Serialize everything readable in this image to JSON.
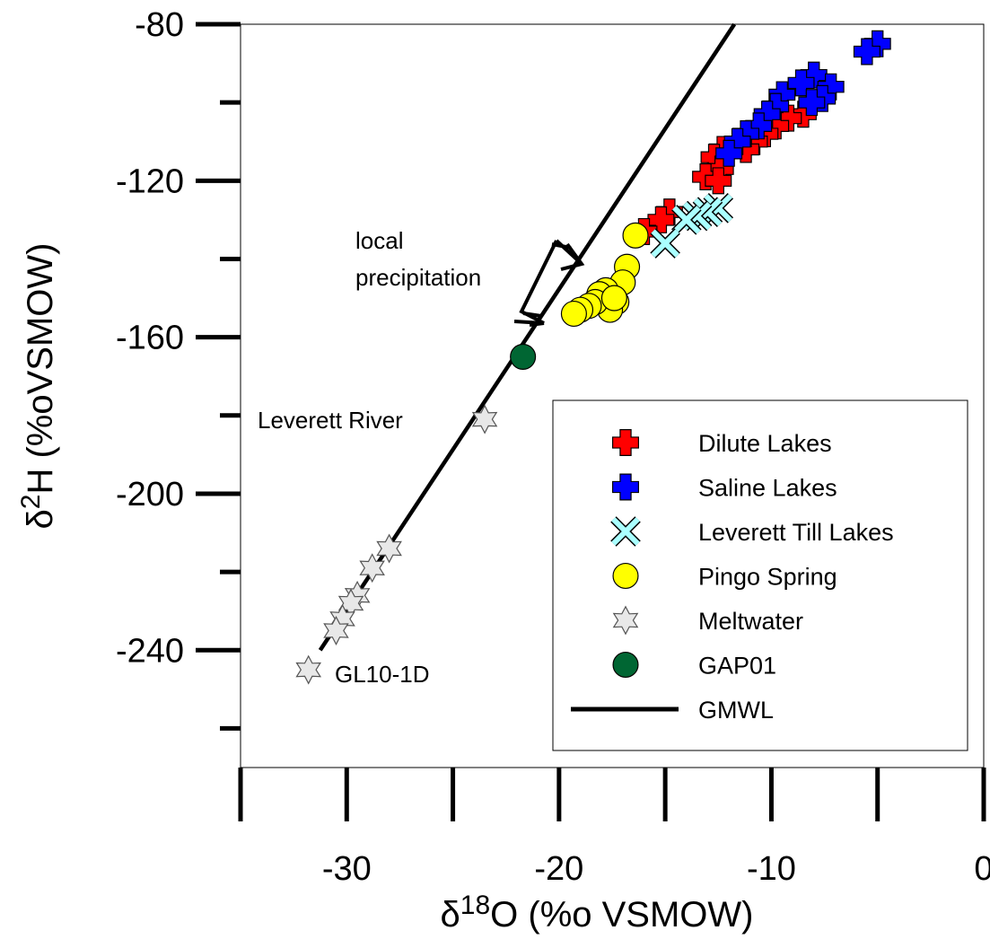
{
  "chart_data": {
    "type": "scatter",
    "title": "",
    "xlabel_prefix": "δ",
    "xlabel_sup": "18",
    "xlabel_main": "O (%o VSMOW)",
    "ylabel_prefix": "δ",
    "ylabel_sup": "2",
    "ylabel_main": "H (%oVSMOW)",
    "xlim": [
      -35,
      0
    ],
    "ylim": [
      -270,
      -80
    ],
    "x_ticks_major": [
      -30,
      -20,
      -10,
      0
    ],
    "x_ticks_minor": [
      -35,
      -25,
      -15,
      -5
    ],
    "y_ticks_major": [
      -80,
      -120,
      -160,
      -200,
      -240
    ],
    "y_ticks_minor": [
      -100,
      -140,
      -180,
      -220,
      -260
    ],
    "grid": false,
    "legend_position": "lower-right",
    "series": [
      {
        "name": "Dilute Lakes",
        "marker": "plus",
        "color": "#ff0000",
        "points": [
          [
            -8.5,
            -103
          ],
          [
            -9.2,
            -104
          ],
          [
            -9.8,
            -106
          ],
          [
            -10.3,
            -108
          ],
          [
            -10.8,
            -110
          ],
          [
            -11.2,
            -112
          ],
          [
            -12.3,
            -112
          ],
          [
            -12.7,
            -114
          ],
          [
            -12.4,
            -117
          ],
          [
            -13.1,
            -119
          ],
          [
            -12.5,
            -120
          ],
          [
            -14.8,
            -128
          ],
          [
            -15.2,
            -130
          ],
          [
            -16.0,
            -133
          ]
        ]
      },
      {
        "name": "Saline Lakes",
        "marker": "plus",
        "color": "#0000ff",
        "points": [
          [
            -5.0,
            -85
          ],
          [
            -5.5,
            -87
          ],
          [
            -8.0,
            -93
          ],
          [
            -8.6,
            -95
          ],
          [
            -7.2,
            -96
          ],
          [
            -9.5,
            -98
          ],
          [
            -7.6,
            -99
          ],
          [
            -8.1,
            -100
          ],
          [
            -9.8,
            -101
          ],
          [
            -10.2,
            -103
          ],
          [
            -10.6,
            -106
          ],
          [
            -11.2,
            -108
          ],
          [
            -11.6,
            -110
          ],
          [
            -12.0,
            -113
          ]
        ]
      },
      {
        "name": "Leverett Till Lakes",
        "marker": "x",
        "color": "#aaffff",
        "points": [
          [
            -12.5,
            -127
          ],
          [
            -13.0,
            -128
          ],
          [
            -13.5,
            -129
          ],
          [
            -14.0,
            -130
          ],
          [
            -15.0,
            -136
          ]
        ]
      },
      {
        "name": "Pingo Spring",
        "marker": "circle",
        "color": "#ffff00",
        "points": [
          [
            -16.4,
            -134
          ],
          [
            -16.8,
            -142
          ],
          [
            -17.0,
            -146
          ],
          [
            -17.3,
            -151
          ],
          [
            -17.6,
            -153
          ],
          [
            -17.8,
            -148
          ],
          [
            -18.1,
            -149
          ],
          [
            -18.3,
            -151
          ],
          [
            -18.6,
            -152
          ],
          [
            -19.0,
            -153
          ],
          [
            -19.3,
            -154
          ],
          [
            -17.4,
            -150
          ]
        ]
      },
      {
        "name": "Meltwater",
        "marker": "star",
        "color": "#e8e8e8",
        "points": [
          [
            -23.5,
            -181
          ],
          [
            -28.0,
            -214
          ],
          [
            -28.8,
            -219
          ],
          [
            -29.5,
            -226
          ],
          [
            -29.8,
            -228
          ],
          [
            -30.2,
            -232
          ],
          [
            -30.5,
            -235
          ],
          [
            -31.8,
            -245
          ]
        ]
      },
      {
        "name": "GAP01",
        "marker": "circle",
        "color": "#006633",
        "points": [
          [
            -21.7,
            -165
          ]
        ]
      },
      {
        "name": "GMWL",
        "marker": "line",
        "color": "#000000",
        "points": [
          [
            -31.25,
            -240
          ],
          [
            -11.5,
            -78
          ]
        ]
      }
    ],
    "annotations": [
      {
        "id": "local-precipitation",
        "line1": "local",
        "line2": "precipitation"
      },
      {
        "id": "leverett-river",
        "text": "Leverett River"
      },
      {
        "id": "gl10-1d",
        "text": "GL10-1D"
      }
    ]
  }
}
